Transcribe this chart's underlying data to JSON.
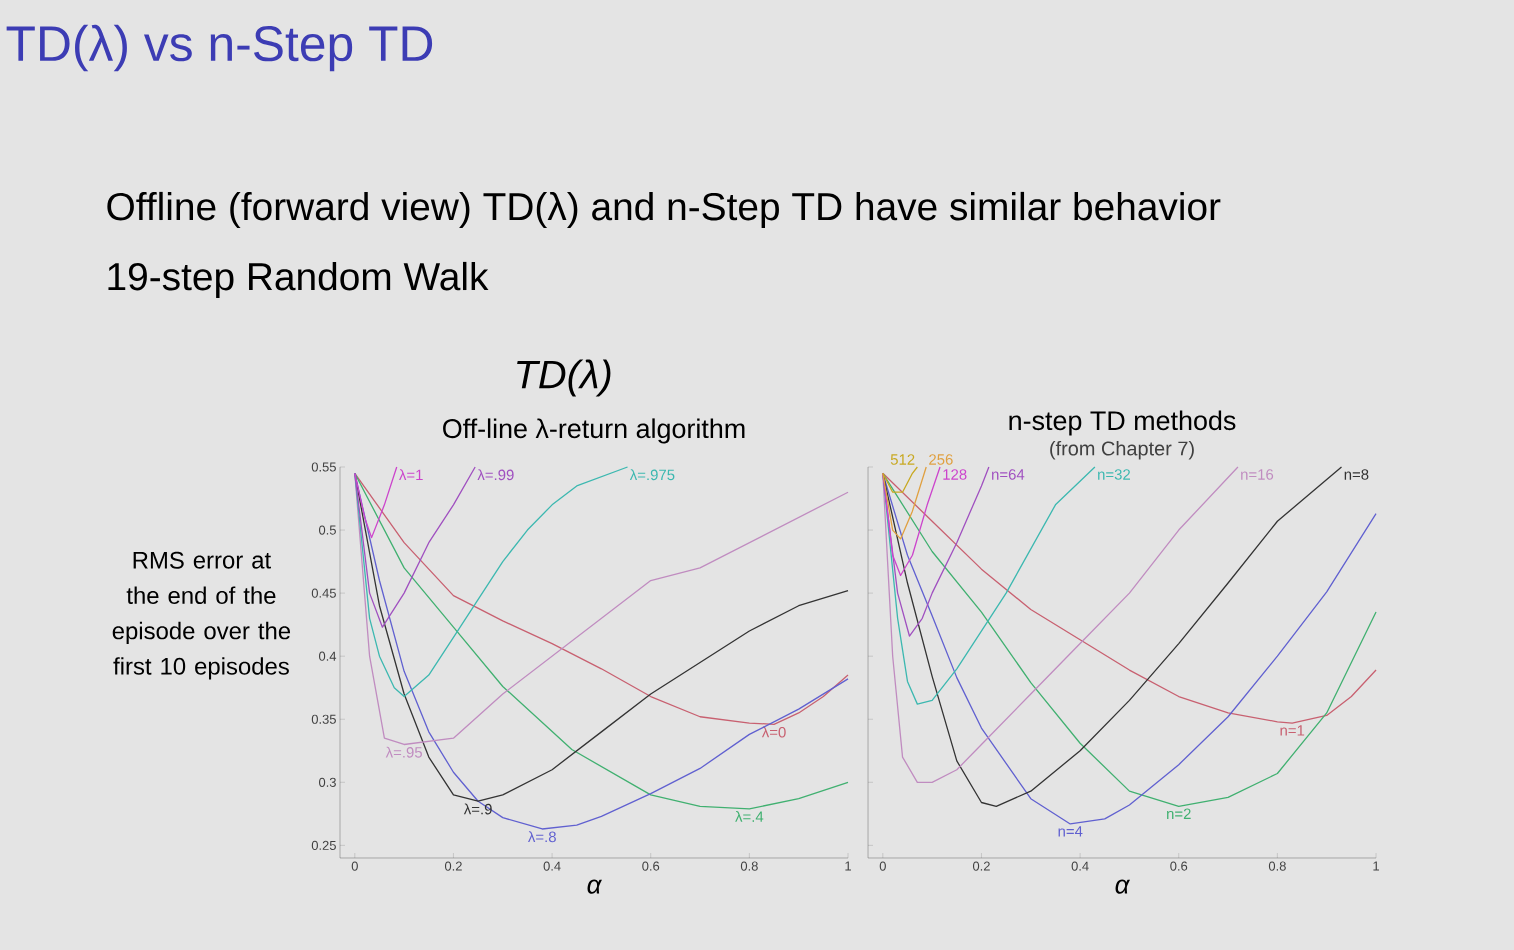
{
  "chart_data": [
    {
      "type": "line",
      "title": "Off-line λ-return algorithm",
      "xlabel": "α",
      "ylabel": "RMS error at the end of the episode over the first 10 episodes",
      "annotations": [
        "TD(λ) vs n-Step TD",
        "Offline (forward view) TD(λ) and n-Step TD have similar behavior",
        "19-step Random Walk",
        "TD(λ)"
      ],
      "xlim": [
        -0.03,
        1
      ],
      "ylim": [
        0.24,
        0.55
      ],
      "xticks": [
        0,
        0.2,
        0.4,
        0.6,
        0.8,
        1
      ],
      "yticks": [
        0.25,
        0.3,
        0.35,
        0.4,
        0.45,
        0.5,
        0.55
      ],
      "grid": false,
      "legend": false,
      "marker": "none",
      "line_style": "solid",
      "series": [
        {
          "name": "λ=0",
          "color": "#c86070",
          "x": [
            0,
            0.1,
            0.2,
            0.3,
            0.4,
            0.5,
            0.6,
            0.7,
            0.8,
            0.85,
            0.9,
            0.95,
            1.0
          ],
          "values": [
            0.545,
            0.49,
            0.448,
            0.428,
            0.41,
            0.39,
            0.368,
            0.352,
            0.347,
            0.346,
            0.355,
            0.368,
            0.385
          ]
        },
        {
          "name": "λ=.4",
          "color": "#40b070",
          "x": [
            0,
            0.1,
            0.2,
            0.3,
            0.44,
            0.6,
            0.7,
            0.8,
            0.9,
            1.0
          ],
          "values": [
            0.545,
            0.47,
            0.423,
            0.376,
            0.326,
            0.29,
            0.281,
            0.279,
            0.287,
            0.3
          ]
        },
        {
          "name": "λ=.8",
          "color": "#6060d0",
          "x": [
            0,
            0.05,
            0.1,
            0.15,
            0.2,
            0.25,
            0.3,
            0.38,
            0.45,
            0.5,
            0.6,
            0.7,
            0.8,
            0.9,
            1.0
          ],
          "values": [
            0.545,
            0.46,
            0.388,
            0.34,
            0.308,
            0.285,
            0.272,
            0.263,
            0.266,
            0.273,
            0.291,
            0.311,
            0.338,
            0.358,
            0.382
          ]
        },
        {
          "name": "λ=.9",
          "color": "#333333",
          "x": [
            0,
            0.05,
            0.1,
            0.15,
            0.2,
            0.25,
            0.3,
            0.4,
            0.5,
            0.6,
            0.7,
            0.8,
            0.9,
            1.0
          ],
          "values": [
            0.545,
            0.44,
            0.37,
            0.32,
            0.29,
            0.285,
            0.29,
            0.31,
            0.34,
            0.37,
            0.395,
            0.42,
            0.44,
            0.452
          ]
        },
        {
          "name": "λ=.95",
          "color": "#c08cc0",
          "x": [
            0,
            0.03,
            0.06,
            0.1,
            0.2,
            0.3,
            0.4,
            0.5,
            0.6,
            0.7,
            0.8,
            0.9,
            1.0
          ],
          "values": [
            0.545,
            0.4,
            0.335,
            0.33,
            0.335,
            0.37,
            0.4,
            0.43,
            0.46,
            0.47,
            0.49,
            0.51,
            0.53
          ]
        },
        {
          "name": "λ=.975",
          "color": "#3cb8b0",
          "x": [
            0,
            0.03,
            0.05,
            0.08,
            0.1,
            0.15,
            0.2,
            0.25,
            0.3,
            0.35,
            0.4,
            0.45,
            0.553
          ],
          "values": [
            0.545,
            0.43,
            0.4,
            0.375,
            0.368,
            0.385,
            0.415,
            0.445,
            0.475,
            0.5,
            0.52,
            0.535,
            0.55
          ]
        },
        {
          "name": "λ=.99",
          "color": "#a050c0",
          "x": [
            0,
            0.03,
            0.056,
            0.1,
            0.15,
            0.2,
            0.244
          ],
          "values": [
            0.545,
            0.45,
            0.423,
            0.45,
            0.49,
            0.52,
            0.55
          ]
        },
        {
          "name": "λ=1",
          "color": "#cc44cc",
          "x": [
            0,
            0.02,
            0.034,
            0.06,
            0.085
          ],
          "values": [
            0.545,
            0.51,
            0.494,
            0.52,
            0.55
          ]
        }
      ]
    },
    {
      "type": "line",
      "title": "n-step TD methods",
      "subtitle": "(from Chapter 7)",
      "xlabel": "α",
      "xlim": [
        -0.03,
        1
      ],
      "ylim": [
        0.24,
        0.55
      ],
      "xticks": [
        0,
        0.2,
        0.4,
        0.6,
        0.8,
        1
      ],
      "yticks": [
        0.25,
        0.3,
        0.35,
        0.4,
        0.45,
        0.5,
        0.55
      ],
      "tick_labels": "x",
      "grid": false,
      "legend": false,
      "marker": "none",
      "line_style": "solid",
      "series": [
        {
          "name": "n=1",
          "color": "#c86070",
          "x": [
            0,
            0.1,
            0.2,
            0.3,
            0.4,
            0.5,
            0.6,
            0.7,
            0.8,
            0.83,
            0.9,
            0.95,
            1.0
          ],
          "values": [
            0.545,
            0.507,
            0.469,
            0.437,
            0.413,
            0.389,
            0.368,
            0.355,
            0.348,
            0.347,
            0.353,
            0.368,
            0.389
          ]
        },
        {
          "name": "n=2",
          "color": "#40b070",
          "x": [
            0,
            0.1,
            0.2,
            0.3,
            0.4,
            0.5,
            0.6,
            0.7,
            0.8,
            0.9,
            1.0
          ],
          "values": [
            0.545,
            0.483,
            0.435,
            0.379,
            0.331,
            0.293,
            0.281,
            0.288,
            0.307,
            0.355,
            0.435
          ]
        },
        {
          "name": "n=4",
          "color": "#6060d0",
          "x": [
            0,
            0.05,
            0.1,
            0.15,
            0.2,
            0.3,
            0.38,
            0.45,
            0.5,
            0.6,
            0.7,
            0.8,
            0.9,
            1.0
          ],
          "values": [
            0.545,
            0.48,
            0.432,
            0.383,
            0.343,
            0.287,
            0.267,
            0.271,
            0.282,
            0.314,
            0.352,
            0.4,
            0.451,
            0.513
          ]
        },
        {
          "name": "n=8",
          "color": "#333333",
          "x": [
            0,
            0.05,
            0.1,
            0.15,
            0.2,
            0.23,
            0.3,
            0.4,
            0.5,
            0.6,
            0.7,
            0.8,
            0.93
          ],
          "values": [
            0.545,
            0.458,
            0.384,
            0.317,
            0.284,
            0.281,
            0.293,
            0.325,
            0.365,
            0.41,
            0.458,
            0.507,
            0.55
          ]
        },
        {
          "name": "n=16",
          "color": "#c08cc0",
          "x": [
            0,
            0.02,
            0.04,
            0.07,
            0.1,
            0.15,
            0.2,
            0.3,
            0.4,
            0.5,
            0.6,
            0.72
          ],
          "values": [
            0.545,
            0.4,
            0.32,
            0.3,
            0.3,
            0.31,
            0.33,
            0.37,
            0.41,
            0.45,
            0.5,
            0.55
          ]
        },
        {
          "name": "n=32",
          "color": "#3cb8b0",
          "x": [
            0,
            0.03,
            0.05,
            0.07,
            0.1,
            0.15,
            0.2,
            0.25,
            0.3,
            0.35,
            0.43
          ],
          "values": [
            0.545,
            0.43,
            0.38,
            0.362,
            0.365,
            0.39,
            0.42,
            0.45,
            0.485,
            0.52,
            0.55
          ]
        },
        {
          "name": "n=64",
          "color": "#a050c0",
          "x": [
            0,
            0.03,
            0.054,
            0.08,
            0.1,
            0.15,
            0.2,
            0.215
          ],
          "values": [
            0.545,
            0.45,
            0.416,
            0.43,
            0.45,
            0.49,
            0.535,
            0.55
          ]
        },
        {
          "name": "128",
          "color": "#cc44cc",
          "x": [
            0,
            0.02,
            0.036,
            0.06,
            0.09,
            0.116
          ],
          "values": [
            0.545,
            0.48,
            0.464,
            0.48,
            0.52,
            0.55
          ]
        },
        {
          "name": "256",
          "color": "#e0a040",
          "x": [
            0,
            0.02,
            0.036,
            0.06,
            0.088
          ],
          "values": [
            0.545,
            0.5,
            0.493,
            0.515,
            0.55
          ]
        },
        {
          "name": "512",
          "color": "#c8a820",
          "x": [
            0,
            0.02,
            0.04,
            0.06,
            0.07
          ],
          "values": [
            0.545,
            0.53,
            0.53,
            0.545,
            0.55
          ]
        }
      ]
    }
  ]
}
